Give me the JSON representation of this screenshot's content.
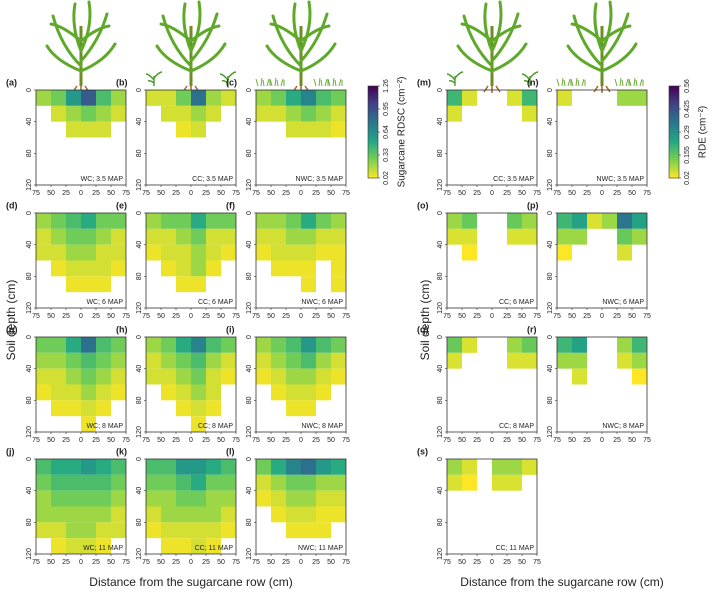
{
  "chart_data": {
    "type": "heatmap",
    "xlabel": "Distance from the sugarcane row (cm)",
    "ylabel": "Soil depth (cm)",
    "xlim": [
      -75,
      75
    ],
    "xticks": [
      {
        "value": -75,
        "label": "75"
      },
      {
        "value": -50,
        "label": "50"
      },
      {
        "value": -25,
        "label": "25"
      },
      0,
      25,
      50,
      75
    ],
    "ylim": [
      120,
      0
    ],
    "yticks": [
      0,
      40,
      80,
      120
    ],
    "x_bins": [
      -75,
      -50,
      -25,
      0,
      25,
      50,
      75
    ],
    "y_bins": [
      0,
      20,
      40,
      60,
      80,
      100,
      120
    ],
    "colorbars": [
      {
        "title": "Sugarcane RDSC (cm⁻²)",
        "lim": [
          0.02,
          1.26
        ],
        "ticks": [
          0.02,
          0.33,
          0.64,
          0.95,
          1.26
        ],
        "colors": [
          "#fde725",
          "#7ad151",
          "#22a884",
          "#2a788e",
          "#414487",
          "#440154"
        ]
      },
      {
        "title": "RDE (cm⁻²)",
        "lim": [
          0.02,
          0.56
        ],
        "ticks": [
          0.02,
          0.155,
          0.29,
          0.425,
          0.56
        ],
        "colors": [
          "#fde725",
          "#7ad151",
          "#22a884",
          "#2a788e",
          "#414487",
          "#440154"
        ]
      }
    ],
    "panels": [
      {
        "label": "(a)",
        "annotation": "WC; 3.5 MAP",
        "colorbar": 0,
        "values": [
          [
            0.2,
            0.3,
            0.6,
            0.9,
            0.4,
            0.2
          ],
          [
            null,
            0.1,
            0.2,
            0.3,
            0.2,
            0.1
          ],
          [
            null,
            null,
            0.1,
            0.1,
            0.1,
            null
          ],
          [
            null,
            null,
            null,
            null,
            null,
            null
          ],
          [
            null,
            null,
            null,
            null,
            null,
            null
          ],
          [
            null,
            null,
            null,
            null,
            null,
            null
          ]
        ]
      },
      {
        "label": "(b)",
        "annotation": "CC; 3.5 MAP",
        "colorbar": 0,
        "values": [
          [
            0.1,
            0.1,
            0.3,
            0.8,
            0.2,
            0.1
          ],
          [
            null,
            0.1,
            0.1,
            0.2,
            0.1,
            null
          ],
          [
            null,
            null,
            0.05,
            0.1,
            null,
            null
          ],
          [
            null,
            null,
            null,
            null,
            null,
            null
          ],
          [
            null,
            null,
            null,
            null,
            null,
            null
          ],
          [
            null,
            null,
            null,
            null,
            null,
            null
          ]
        ]
      },
      {
        "label": "(c)",
        "annotation": "NWC; 3.5 MAP",
        "colorbar": 0,
        "values": [
          [
            0.2,
            0.3,
            0.5,
            0.7,
            0.4,
            0.3
          ],
          [
            0.1,
            0.1,
            0.2,
            0.3,
            0.2,
            0.1
          ],
          [
            null,
            null,
            0.1,
            0.1,
            0.1,
            0.05
          ],
          [
            null,
            null,
            null,
            null,
            null,
            null
          ],
          [
            null,
            null,
            null,
            null,
            null,
            null
          ],
          [
            null,
            null,
            null,
            null,
            null,
            null
          ]
        ]
      },
      {
        "label": "(d)",
        "annotation": "WC; 6 MAP",
        "colorbar": 0,
        "values": [
          [
            0.2,
            0.3,
            0.4,
            0.5,
            0.3,
            0.3
          ],
          [
            0.1,
            0.2,
            0.3,
            0.3,
            0.2,
            0.1
          ],
          [
            0.1,
            0.1,
            0.2,
            0.2,
            0.1,
            0.1
          ],
          [
            null,
            0.05,
            0.1,
            0.1,
            0.1,
            0.05
          ],
          [
            null,
            null,
            0.05,
            0.05,
            0.05,
            null
          ],
          [
            null,
            null,
            null,
            null,
            null,
            null
          ]
        ]
      },
      {
        "label": "(e)",
        "annotation": "CC; 6 MAP",
        "colorbar": 0,
        "values": [
          [
            0.2,
            0.3,
            0.3,
            0.5,
            0.3,
            0.3
          ],
          [
            0.1,
            0.1,
            0.2,
            0.3,
            0.1,
            0.1
          ],
          [
            0.05,
            0.1,
            0.1,
            0.2,
            0.1,
            0.05
          ],
          [
            null,
            0.05,
            0.1,
            0.2,
            0.05,
            null
          ],
          [
            null,
            null,
            0.05,
            0.05,
            null,
            null
          ],
          [
            null,
            null,
            null,
            null,
            null,
            null
          ]
        ]
      },
      {
        "label": "(f)",
        "annotation": "NWC; 6 MAP",
        "colorbar": 0,
        "values": [
          [
            0.2,
            0.2,
            0.3,
            0.5,
            0.3,
            0.2
          ],
          [
            0.1,
            0.1,
            0.2,
            0.2,
            0.1,
            0.1
          ],
          [
            0.05,
            0.1,
            0.1,
            0.1,
            0.05,
            0.05
          ],
          [
            null,
            0.05,
            0.05,
            0.05,
            null,
            0.05
          ],
          [
            null,
            null,
            null,
            0.05,
            null,
            0.05
          ],
          [
            null,
            null,
            null,
            null,
            null,
            null
          ]
        ]
      },
      {
        "label": "(g)",
        "annotation": "WC; 8 MAP",
        "colorbar": 0,
        "values": [
          [
            0.3,
            0.3,
            0.5,
            0.8,
            0.4,
            0.3
          ],
          [
            0.2,
            0.2,
            0.3,
            0.4,
            0.3,
            0.2
          ],
          [
            0.1,
            0.1,
            0.2,
            0.3,
            0.2,
            0.1
          ],
          [
            0.05,
            0.1,
            0.1,
            0.2,
            0.1,
            0.05
          ],
          [
            null,
            0.05,
            0.05,
            0.1,
            0.05,
            null
          ],
          [
            null,
            null,
            null,
            0.05,
            null,
            null
          ]
        ]
      },
      {
        "label": "(h)",
        "annotation": "CC; 8 MAP",
        "colorbar": 0,
        "values": [
          [
            0.2,
            0.3,
            0.5,
            0.7,
            0.4,
            0.3
          ],
          [
            0.1,
            0.2,
            0.3,
            0.4,
            0.2,
            0.1
          ],
          [
            0.1,
            0.1,
            0.2,
            0.3,
            0.1,
            0.05
          ],
          [
            null,
            0.05,
            0.1,
            0.2,
            0.1,
            null
          ],
          [
            null,
            null,
            0.05,
            0.1,
            0.05,
            null
          ],
          [
            null,
            null,
            null,
            0.05,
            null,
            null
          ]
        ]
      },
      {
        "label": "(i)",
        "annotation": "NWC; 8 MAP",
        "colorbar": 0,
        "values": [
          [
            0.2,
            0.3,
            0.4,
            0.6,
            0.4,
            0.3
          ],
          [
            0.1,
            0.2,
            0.3,
            0.4,
            0.2,
            0.1
          ],
          [
            0.05,
            0.1,
            0.2,
            0.2,
            0.1,
            0.05
          ],
          [
            null,
            0.05,
            0.1,
            0.1,
            0.05,
            null
          ],
          [
            null,
            null,
            0.05,
            0.05,
            null,
            null
          ],
          [
            null,
            null,
            null,
            null,
            null,
            null
          ]
        ]
      },
      {
        "label": "(j)",
        "annotation": "WC; 11 MAP",
        "colorbar": 0,
        "values": [
          [
            0.4,
            0.5,
            0.5,
            0.6,
            0.5,
            0.4
          ],
          [
            0.3,
            0.4,
            0.4,
            0.4,
            0.4,
            0.3
          ],
          [
            0.2,
            0.3,
            0.3,
            0.3,
            0.3,
            0.2
          ],
          [
            0.2,
            0.2,
            0.2,
            0.2,
            0.2,
            0.1
          ],
          [
            0.1,
            0.1,
            0.2,
            0.2,
            0.1,
            0.1
          ],
          [
            null,
            0.05,
            0.1,
            0.1,
            0.05,
            null
          ]
        ]
      },
      {
        "label": "(k)",
        "annotation": "CC; 11 MAP",
        "colorbar": 0,
        "values": [
          [
            0.4,
            0.4,
            0.6,
            0.6,
            0.5,
            0.4
          ],
          [
            0.3,
            0.3,
            0.4,
            0.5,
            0.3,
            0.3
          ],
          [
            0.2,
            0.2,
            0.3,
            0.3,
            0.2,
            0.2
          ],
          [
            0.1,
            0.2,
            0.2,
            0.2,
            0.2,
            0.1
          ],
          [
            0.05,
            0.1,
            0.1,
            0.1,
            0.1,
            0.05
          ],
          [
            null,
            0.05,
            0.05,
            0.1,
            0.05,
            null
          ]
        ]
      },
      {
        "label": "(l)",
        "annotation": "NWC; 11 MAP",
        "colorbar": 0,
        "values": [
          [
            0.3,
            0.5,
            0.7,
            0.8,
            0.6,
            0.5
          ],
          [
            0.1,
            0.2,
            0.3,
            0.3,
            0.2,
            0.2
          ],
          [
            0.05,
            0.1,
            0.2,
            0.2,
            0.1,
            0.1
          ],
          [
            null,
            0.05,
            0.1,
            0.1,
            0.05,
            0.05
          ],
          [
            null,
            null,
            0.05,
            0.05,
            0.05,
            null
          ],
          [
            null,
            null,
            null,
            null,
            null,
            null
          ]
        ]
      },
      {
        "label": "(m)",
        "annotation": "CC; 3.5 MAP",
        "colorbar": 1,
        "values": [
          [
            0.2,
            0.05,
            null,
            null,
            0.05,
            0.2
          ],
          [
            0.05,
            null,
            null,
            null,
            null,
            0.05
          ],
          [
            null,
            null,
            null,
            null,
            null,
            null
          ],
          [
            null,
            null,
            null,
            null,
            null,
            null
          ],
          [
            null,
            null,
            null,
            null,
            null,
            null
          ],
          [
            null,
            null,
            null,
            null,
            null,
            null
          ]
        ]
      },
      {
        "label": "(n)",
        "annotation": "NWC; 3.5 MAP",
        "colorbar": 1,
        "values": [
          [
            0.05,
            null,
            null,
            null,
            0.1,
            0.1
          ],
          [
            null,
            null,
            null,
            null,
            null,
            null
          ],
          [
            null,
            null,
            null,
            null,
            null,
            null
          ],
          [
            null,
            null,
            null,
            null,
            null,
            null
          ],
          [
            null,
            null,
            null,
            null,
            null,
            null
          ],
          [
            null,
            null,
            null,
            null,
            null,
            null
          ]
        ]
      },
      {
        "label": "(o)",
        "annotation": "CC; 6 MAP",
        "colorbar": 1,
        "values": [
          [
            0.1,
            0.15,
            null,
            null,
            0.15,
            0.1
          ],
          [
            0.05,
            0.05,
            null,
            null,
            0.05,
            0.05
          ],
          [
            null,
            0.02,
            null,
            null,
            null,
            null
          ],
          [
            null,
            null,
            null,
            null,
            null,
            null
          ],
          [
            null,
            null,
            null,
            null,
            null,
            null
          ],
          [
            null,
            null,
            null,
            null,
            null,
            null
          ]
        ]
      },
      {
        "label": "(p)",
        "annotation": "NWC; 6 MAP",
        "colorbar": 1,
        "values": [
          [
            0.2,
            0.25,
            0.05,
            0.1,
            0.35,
            0.25
          ],
          [
            0.1,
            0.1,
            null,
            null,
            0.15,
            0.1
          ],
          [
            0.02,
            null,
            null,
            null,
            0.05,
            null
          ],
          [
            null,
            null,
            null,
            null,
            null,
            null
          ],
          [
            null,
            null,
            null,
            null,
            null,
            null
          ],
          [
            null,
            null,
            null,
            null,
            null,
            null
          ]
        ]
      },
      {
        "label": "(q)",
        "annotation": "CC; 8 MAP",
        "colorbar": 1,
        "values": [
          [
            0.15,
            0.05,
            null,
            null,
            0.1,
            0.15
          ],
          [
            0.05,
            null,
            null,
            null,
            0.05,
            0.05
          ],
          [
            null,
            null,
            null,
            null,
            null,
            null
          ],
          [
            null,
            null,
            null,
            null,
            null,
            null
          ],
          [
            null,
            null,
            null,
            null,
            null,
            null
          ],
          [
            null,
            null,
            null,
            null,
            null,
            null
          ]
        ]
      },
      {
        "label": "(r)",
        "annotation": "NWC; 8 MAP",
        "colorbar": 1,
        "values": [
          [
            0.2,
            0.25,
            null,
            null,
            0.1,
            0.2
          ],
          [
            0.1,
            0.1,
            null,
            null,
            0.05,
            0.1
          ],
          [
            null,
            0.05,
            null,
            null,
            null,
            0.02
          ],
          [
            null,
            null,
            null,
            null,
            null,
            null
          ],
          [
            null,
            null,
            null,
            null,
            null,
            null
          ],
          [
            null,
            null,
            null,
            null,
            null,
            null
          ]
        ]
      },
      {
        "label": "(s)",
        "annotation": "CC; 11 MAP",
        "colorbar": 1,
        "values": [
          [
            0.1,
            0.05,
            null,
            0.1,
            0.1,
            0.05
          ],
          [
            0.05,
            0.02,
            null,
            0.05,
            0.05,
            null
          ],
          [
            null,
            null,
            null,
            null,
            null,
            null
          ],
          [
            null,
            null,
            null,
            null,
            null,
            null
          ],
          [
            null,
            null,
            null,
            null,
            null,
            null
          ],
          [
            null,
            null,
            null,
            null,
            null,
            null
          ]
        ]
      }
    ]
  }
}
